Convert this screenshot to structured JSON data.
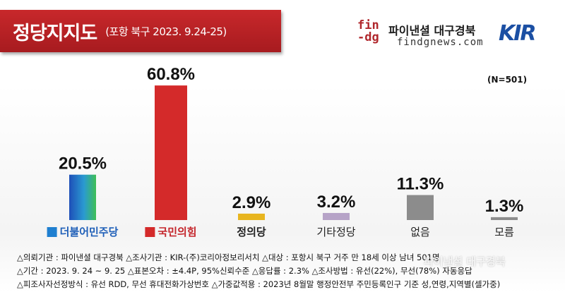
{
  "header": {
    "title": "정당지지도",
    "subtitle": "(포항 북구 2023. 9.24-25)"
  },
  "brand": {
    "logo_line1": "fin",
    "logo_line2": "-dg",
    "name": "파이낸셜 대구경북",
    "url": "findgnews.com",
    "kir": "KIR"
  },
  "sample_note": "(N=501)",
  "colors": {
    "title_bar": "#b5201f",
    "democratic": "#1f7fd0",
    "ppp": "#d42a2a",
    "justice": "#e8b51f",
    "other": "#b6a3c7",
    "none": "#8c8c8c",
    "unknown": "#8c8c8c"
  },
  "chart_data": {
    "type": "bar",
    "categories": [
      "더불어민주당",
      "국민의힘",
      "정의당",
      "기타정당",
      "없음",
      "모름"
    ],
    "values": [
      20.5,
      60.8,
      2.9,
      3.2,
      11.3,
      1.3
    ],
    "value_labels": [
      "20.5%",
      "60.8%",
      "2.9%",
      "3.2%",
      "11.3%",
      "1.3%"
    ],
    "ylim": [
      0,
      65
    ],
    "grid": false,
    "legend": "none"
  },
  "notes": [
    "△의뢰기관 : 파이낸셜 대구경북    △조사기관 : KIR-(주)코리아정보리서치    △대상 : 포항시 북구 거주 만 18세 이상 남녀 501명",
    "△기간 : 2023. 9. 24 ~ 9. 25    △표본오차 : ±4.4P, 95%신뢰수준    △응답률 : 2.3%    △조사방법 : 유선(22%), 무선(78%) 자동응답",
    "△피조사자선정방식 : 유선 RDD, 무선 휴대전화가상번호    △가중값적용 : 2023년 8월말 행정안전부 주민등록인구 기준 성,연령,지역별(셀가중)"
  ],
  "watermark": "파이낸셜 대구경북"
}
